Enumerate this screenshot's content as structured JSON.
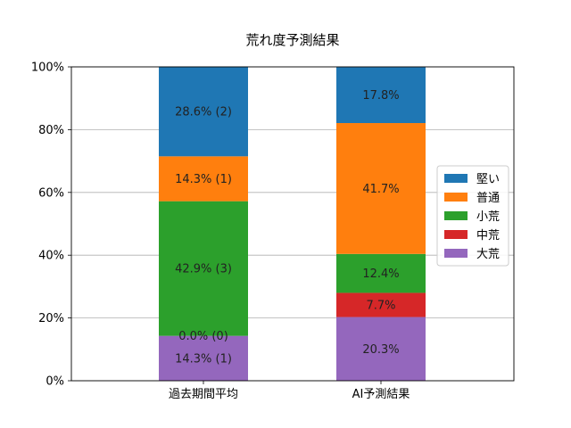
{
  "chart_data": {
    "type": "bar",
    "stacked": true,
    "title": "荒れ度予測結果",
    "xlabel": "",
    "ylabel": "",
    "categories": [
      "過去期間平均",
      "AI予測結果"
    ],
    "ylim": [
      0,
      100
    ],
    "yticks": [
      "0%",
      "20%",
      "40%",
      "60%",
      "80%",
      "100%"
    ],
    "grid": "horizontal",
    "legend_position": "right",
    "series": [
      {
        "name": "大荒",
        "color": "#9467bd",
        "values": [
          14.3,
          20.3
        ],
        "labels": [
          "14.3% (1)",
          "20.3%"
        ]
      },
      {
        "name": "中荒",
        "color": "#d62728",
        "values": [
          0.0,
          7.7
        ],
        "labels": [
          "0.0% (0)",
          "7.7%"
        ]
      },
      {
        "name": "小荒",
        "color": "#2ca02c",
        "values": [
          42.9,
          12.4
        ],
        "labels": [
          "42.9% (3)",
          "12.4%"
        ]
      },
      {
        "name": "普通",
        "color": "#ff7f0e",
        "values": [
          14.3,
          41.7
        ],
        "labels": [
          "14.3% (1)",
          "41.7%"
        ]
      },
      {
        "name": "堅い",
        "color": "#1f77b4",
        "values": [
          28.6,
          17.8
        ],
        "labels": [
          "28.6% (2)",
          "17.8%"
        ]
      }
    ],
    "legend_order": [
      "堅い",
      "普通",
      "小荒",
      "中荒",
      "大荒"
    ]
  }
}
